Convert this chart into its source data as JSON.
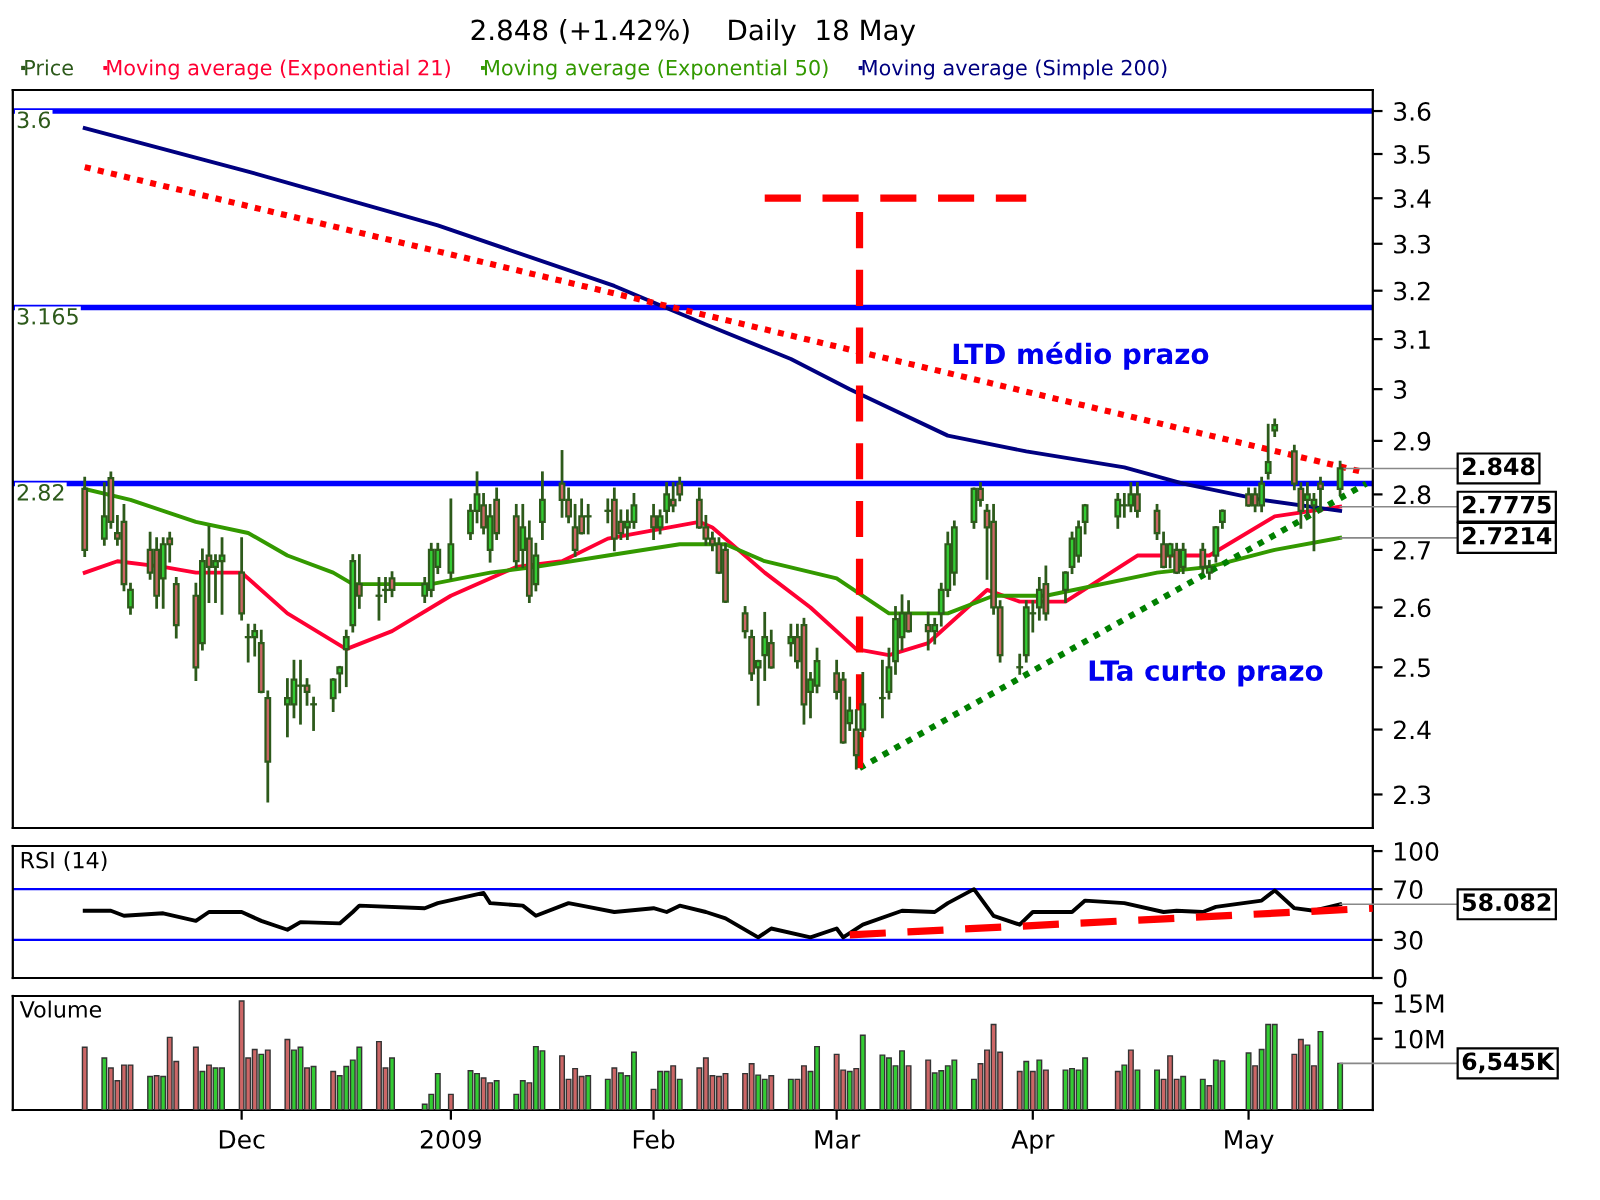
{
  "chart_data": [
    {
      "type": "candlestick",
      "title": "2.848 (+1.42%)    Daily  18 May",
      "log": true,
      "legend": "top left",
      "grid": false,
      "tick_labels": "y",
      "xlim": [
        "2008-10-27",
        "2009-05-23"
      ],
      "ylim": [
        2.25,
        3.65
      ],
      "yticks": [
        2.3,
        2.4,
        2.5,
        2.6,
        2.7,
        2.8,
        2.9,
        3,
        3.1,
        3.2,
        3.3,
        3.4,
        3.5,
        3.6
      ],
      "series": [
        {
          "type": "candlestick",
          "name": "Price",
          "color": "#2d5a1b",
          "x": [
            "2008-11-07",
            "2008-11-10",
            "2008-11-11",
            "2008-11-12",
            "2008-11-13",
            "2008-11-14",
            "2008-11-17",
            "2008-11-18",
            "2008-11-19",
            "2008-11-20",
            "2008-11-21",
            "2008-11-24",
            "2008-11-25",
            "2008-11-26",
            "2008-11-27",
            "2008-11-28",
            "2008-12-01",
            "2008-12-02",
            "2008-12-03",
            "2008-12-04",
            "2008-12-05",
            "2008-12-08",
            "2008-12-09",
            "2008-12-10",
            "2008-12-11",
            "2008-12-12",
            "2008-12-15",
            "2008-12-16",
            "2008-12-17",
            "2008-12-18",
            "2008-12-19",
            "2008-12-22",
            "2008-12-23",
            "2008-12-24",
            "2008-12-29",
            "2008-12-30",
            "2008-12-31",
            "2009-01-02",
            "2009-01-05",
            "2009-01-06",
            "2009-01-07",
            "2009-01-08",
            "2009-01-09",
            "2009-01-12",
            "2009-01-13",
            "2009-01-14",
            "2009-01-15",
            "2009-01-16",
            "2009-01-19",
            "2009-01-20",
            "2009-01-21",
            "2009-01-22",
            "2009-01-23",
            "2009-01-26",
            "2009-01-27",
            "2009-01-28",
            "2009-01-29",
            "2009-01-30",
            "2009-02-02",
            "2009-02-03",
            "2009-02-04",
            "2009-02-05",
            "2009-02-06",
            "2009-02-09",
            "2009-02-10",
            "2009-02-11",
            "2009-02-12",
            "2009-02-13",
            "2009-02-16",
            "2009-02-17",
            "2009-02-18",
            "2009-02-19",
            "2009-02-20",
            "2009-02-23",
            "2009-02-24",
            "2009-02-25",
            "2009-02-26",
            "2009-02-27",
            "2009-03-02",
            "2009-03-03",
            "2009-03-04",
            "2009-03-05",
            "2009-03-06",
            "2009-03-09",
            "2009-03-10",
            "2009-03-11",
            "2009-03-12",
            "2009-03-13",
            "2009-03-16",
            "2009-03-17",
            "2009-03-18",
            "2009-03-19",
            "2009-03-20",
            "2009-03-23",
            "2009-03-24",
            "2009-03-25",
            "2009-03-26",
            "2009-03-27",
            "2009-03-30",
            "2009-03-31",
            "2009-04-01",
            "2009-04-02",
            "2009-04-03",
            "2009-04-06",
            "2009-04-07",
            "2009-04-08",
            "2009-04-09",
            "2009-04-14",
            "2009-04-15",
            "2009-04-16",
            "2009-04-17",
            "2009-04-20",
            "2009-04-21",
            "2009-04-22",
            "2009-04-23",
            "2009-04-24",
            "2009-04-27",
            "2009-04-28",
            "2009-04-29",
            "2009-04-30",
            "2009-05-04",
            "2009-05-05",
            "2009-05-06",
            "2009-05-07",
            "2009-05-08",
            "2009-05-11",
            "2009-05-12",
            "2009-05-13",
            "2009-05-14",
            "2009-05-15",
            "2009-05-18"
          ],
          "ohlc": [
            [
              2.81,
              2.83,
              2.69,
              2.7
            ],
            [
              2.72,
              2.82,
              2.71,
              2.76
            ],
            [
              2.83,
              2.84,
              2.74,
              2.75
            ],
            [
              2.73,
              2.76,
              2.71,
              2.72
            ],
            [
              2.75,
              2.78,
              2.63,
              2.64
            ],
            [
              2.6,
              2.64,
              2.59,
              2.63
            ],
            [
              2.7,
              2.73,
              2.65,
              2.66
            ],
            [
              2.7,
              2.72,
              2.6,
              2.62
            ],
            [
              2.65,
              2.72,
              2.6,
              2.71
            ],
            [
              2.72,
              2.73,
              2.68,
              2.71
            ],
            [
              2.64,
              2.65,
              2.55,
              2.57
            ],
            [
              2.62,
              2.64,
              2.48,
              2.5
            ],
            [
              2.54,
              2.7,
              2.53,
              2.68
            ],
            [
              2.69,
              2.74,
              2.61,
              2.67
            ],
            [
              2.67,
              2.69,
              2.61,
              2.68
            ],
            [
              2.68,
              2.72,
              2.59,
              2.69
            ],
            [
              2.66,
              2.72,
              2.58,
              2.59
            ],
            [
              2.55,
              2.57,
              2.51,
              2.55
            ],
            [
              2.55,
              2.57,
              2.52,
              2.56
            ],
            [
              2.54,
              2.56,
              2.46,
              2.46
            ],
            [
              2.45,
              2.46,
              2.29,
              2.35
            ],
            [
              2.44,
              2.48,
              2.39,
              2.45
            ],
            [
              2.44,
              2.51,
              2.42,
              2.48
            ],
            [
              2.47,
              2.51,
              2.41,
              2.47
            ],
            [
              2.47,
              2.48,
              2.44,
              2.46
            ],
            [
              2.44,
              2.45,
              2.4,
              2.44
            ],
            [
              2.45,
              2.48,
              2.43,
              2.48
            ],
            [
              2.49,
              2.5,
              2.46,
              2.5
            ],
            [
              2.53,
              2.56,
              2.47,
              2.55
            ],
            [
              2.57,
              2.69,
              2.56,
              2.68
            ],
            [
              2.64,
              2.69,
              2.6,
              2.62
            ],
            [
              2.62,
              2.65,
              2.58,
              2.62
            ],
            [
              2.63,
              2.65,
              2.61,
              2.63
            ],
            [
              2.65,
              2.66,
              2.62,
              2.63
            ],
            [
              2.62,
              2.65,
              2.61,
              2.64
            ],
            [
              2.63,
              2.71,
              2.62,
              2.7
            ],
            [
              2.67,
              2.71,
              2.66,
              2.7
            ],
            [
              2.66,
              2.79,
              2.65,
              2.71
            ],
            [
              2.73,
              2.78,
              2.72,
              2.77
            ],
            [
              2.77,
              2.84,
              2.75,
              2.8
            ],
            [
              2.78,
              2.8,
              2.73,
              2.74
            ],
            [
              2.7,
              2.78,
              2.68,
              2.76
            ],
            [
              2.79,
              2.81,
              2.72,
              2.73
            ],
            [
              2.76,
              2.78,
              2.67,
              2.68
            ],
            [
              2.7,
              2.78,
              2.67,
              2.74
            ],
            [
              2.72,
              2.75,
              2.61,
              2.62
            ],
            [
              2.64,
              2.71,
              2.63,
              2.69
            ],
            [
              2.75,
              2.84,
              2.72,
              2.79
            ],
            [
              2.82,
              2.88,
              2.76,
              2.79
            ],
            [
              2.79,
              2.81,
              2.75,
              2.76
            ],
            [
              2.74,
              2.78,
              2.69,
              2.7
            ],
            [
              2.76,
              2.79,
              2.73,
              2.73
            ],
            [
              2.76,
              2.78,
              2.73,
              2.76
            ],
            [
              2.77,
              2.79,
              2.75,
              2.77
            ],
            [
              2.79,
              2.81,
              2.7,
              2.72
            ],
            [
              2.75,
              2.77,
              2.72,
              2.73
            ],
            [
              2.74,
              2.77,
              2.72,
              2.75
            ],
            [
              2.75,
              2.8,
              2.74,
              2.78
            ],
            [
              2.76,
              2.78,
              2.72,
              2.74
            ],
            [
              2.74,
              2.77,
              2.73,
              2.76
            ],
            [
              2.77,
              2.82,
              2.75,
              2.8
            ],
            [
              2.79,
              2.82,
              2.77,
              2.78
            ],
            [
              2.82,
              2.83,
              2.79,
              2.8
            ],
            [
              2.79,
              2.81,
              2.74,
              2.74
            ],
            [
              2.74,
              2.76,
              2.71,
              2.72
            ],
            [
              2.72,
              2.73,
              2.7,
              2.71
            ],
            [
              2.71,
              2.72,
              2.66,
              2.66
            ],
            [
              2.7,
              2.71,
              2.61,
              2.61
            ],
            [
              2.59,
              2.6,
              2.55,
              2.56
            ],
            [
              2.55,
              2.56,
              2.48,
              2.49
            ],
            [
              2.5,
              2.51,
              2.44,
              2.51
            ],
            [
              2.52,
              2.59,
              2.48,
              2.55
            ],
            [
              2.54,
              2.56,
              2.5,
              2.5
            ],
            [
              2.54,
              2.57,
              2.52,
              2.55
            ],
            [
              2.55,
              2.57,
              2.5,
              2.51
            ],
            [
              2.57,
              2.58,
              2.41,
              2.44
            ],
            [
              2.46,
              2.49,
              2.42,
              2.48
            ],
            [
              2.47,
              2.53,
              2.46,
              2.51
            ],
            [
              2.49,
              2.51,
              2.45,
              2.46
            ],
            [
              2.48,
              2.49,
              2.38,
              2.38
            ],
            [
              2.41,
              2.45,
              2.4,
              2.43
            ],
            [
              2.4,
              2.43,
              2.34,
              2.36
            ],
            [
              2.4,
              2.49,
              2.39,
              2.44
            ],
            [
              2.45,
              2.51,
              2.42,
              2.45
            ],
            [
              2.46,
              2.53,
              2.45,
              2.5
            ],
            [
              2.51,
              2.6,
              2.49,
              2.58
            ],
            [
              2.55,
              2.62,
              2.53,
              2.59
            ],
            [
              2.59,
              2.61,
              2.56,
              2.56
            ],
            [
              2.57,
              2.59,
              2.53,
              2.56
            ],
            [
              2.56,
              2.58,
              2.54,
              2.57
            ],
            [
              2.59,
              2.64,
              2.57,
              2.63
            ],
            [
              2.63,
              2.73,
              2.62,
              2.71
            ],
            [
              2.66,
              2.75,
              2.64,
              2.74
            ],
            [
              2.75,
              2.81,
              2.74,
              2.81
            ],
            [
              2.81,
              2.82,
              2.78,
              2.79
            ],
            [
              2.77,
              2.78,
              2.65,
              2.74
            ],
            [
              2.75,
              2.78,
              2.59,
              2.6
            ],
            [
              2.6,
              2.61,
              2.51,
              2.52
            ],
            [
              2.5,
              2.52,
              2.49,
              2.5
            ],
            [
              2.52,
              2.61,
              2.51,
              2.6
            ],
            [
              2.59,
              2.61,
              2.56,
              2.59
            ],
            [
              2.6,
              2.65,
              2.58,
              2.63
            ],
            [
              2.64,
              2.67,
              2.58,
              2.59
            ],
            [
              2.63,
              2.66,
              2.61,
              2.66
            ],
            [
              2.67,
              2.73,
              2.66,
              2.72
            ],
            [
              2.69,
              2.75,
              2.68,
              2.74
            ],
            [
              2.75,
              2.78,
              2.73,
              2.78
            ],
            [
              2.76,
              2.8,
              2.74,
              2.79
            ],
            [
              2.78,
              2.8,
              2.76,
              2.78
            ],
            [
              2.78,
              2.82,
              2.77,
              2.8
            ],
            [
              2.8,
              2.82,
              2.76,
              2.77
            ],
            [
              2.77,
              2.78,
              2.72,
              2.73
            ],
            [
              2.71,
              2.73,
              2.67,
              2.67
            ],
            [
              2.69,
              2.71,
              2.67,
              2.71
            ],
            [
              2.7,
              2.71,
              2.66,
              2.66
            ],
            [
              2.67,
              2.71,
              2.66,
              2.7
            ],
            [
              2.7,
              2.71,
              2.66,
              2.67
            ],
            [
              2.66,
              2.68,
              2.65,
              2.67
            ],
            [
              2.69,
              2.74,
              2.68,
              2.74
            ],
            [
              2.75,
              2.77,
              2.74,
              2.77
            ],
            [
              2.8,
              2.81,
              2.78,
              2.78
            ],
            [
              2.8,
              2.81,
              2.77,
              2.78
            ],
            [
              2.78,
              2.83,
              2.77,
              2.82
            ],
            [
              2.84,
              2.93,
              2.83,
              2.86
            ],
            [
              2.92,
              2.94,
              2.91,
              2.93
            ],
            [
              2.88,
              2.89,
              2.81,
              2.82
            ],
            [
              2.81,
              2.82,
              2.74,
              2.77
            ],
            [
              2.79,
              2.82,
              2.76,
              2.8
            ],
            [
              2.78,
              2.8,
              2.7,
              2.79
            ],
            [
              2.82,
              2.83,
              2.77,
              2.81
            ],
            [
              2.81,
              2.86,
              2.8,
              2.848
            ]
          ],
          "colors": [
            "#cc6666",
            "#33cc33",
            "#cc6666",
            "#cc6666",
            "#cc6666",
            "#33cc33",
            "#cc6666",
            "#cc6666",
            "#33cc33",
            "#cc6666",
            "#cc6666",
            "#cc6666",
            "#33cc33",
            "#cc6666",
            "#33cc33",
            "#33cc33",
            "#cc6666",
            "#33cc33",
            "#33cc33",
            "#cc6666",
            "#cc6666",
            "#33cc33",
            "#33cc33",
            "#33cc33",
            "#cc6666",
            "#33cc33",
            "#33cc33",
            "#33cc33",
            "#33cc33",
            "#33cc33",
            "#cc6666",
            "#33cc33",
            "#33cc33",
            "#cc6666",
            "#33cc33",
            "#33cc33",
            "#33cc33",
            "#33cc33",
            "#33cc33",
            "#33cc33",
            "#cc6666",
            "#33cc33",
            "#cc6666",
            "#cc6666",
            "#33cc33",
            "#cc6666",
            "#33cc33",
            "#33cc33",
            "#cc6666",
            "#cc6666",
            "#cc6666",
            "#cc6666",
            "#33cc33",
            "#33cc33",
            "#cc6666",
            "#cc6666",
            "#33cc33",
            "#33cc33",
            "#cc6666",
            "#33cc33",
            "#33cc33",
            "#cc6666",
            "#cc6666",
            "#cc6666",
            "#cc6666",
            "#cc6666",
            "#cc6666",
            "#cc6666",
            "#cc6666",
            "#cc6666",
            "#33cc33",
            "#33cc33",
            "#cc6666",
            "#33cc33",
            "#cc6666",
            "#cc6666",
            "#33cc33",
            "#33cc33",
            "#cc6666",
            "#cc6666",
            "#33cc33",
            "#cc6666",
            "#33cc33",
            "#33cc33",
            "#33cc33",
            "#33cc33",
            "#33cc33",
            "#cc6666",
            "#cc6666",
            "#33cc33",
            "#33cc33",
            "#33cc33",
            "#33cc33",
            "#33cc33",
            "#cc6666",
            "#cc6666",
            "#cc6666",
            "#cc6666",
            "#33cc33",
            "#33cc33",
            "#33cc33",
            "#33cc33",
            "#cc6666",
            "#33cc33",
            "#33cc33",
            "#33cc33",
            "#33cc33",
            "#33cc33",
            "#33cc33",
            "#33cc33",
            "#cc6666",
            "#cc6666",
            "#cc6666",
            "#33cc33",
            "#cc6666",
            "#33cc33",
            "#cc6666",
            "#33cc33",
            "#33cc33",
            "#33cc33",
            "#cc6666",
            "#cc6666",
            "#33cc33",
            "#33cc33",
            "#33cc33",
            "#cc6666",
            "#cc6666",
            "#33cc33",
            "#33cc33",
            "#cc6666",
            "#33cc33"
          ]
        },
        {
          "type": "line",
          "name": "Moving average (Exponential 21)",
          "color": "#ff0033",
          "x": [
            "2008-11-07",
            "2008-11-12",
            "2008-11-19",
            "2008-11-24",
            "2008-12-01",
            "2008-12-08",
            "2008-12-17",
            "2008-12-24",
            "2009-01-02",
            "2009-01-12",
            "2009-01-19",
            "2009-01-26",
            "2009-02-09",
            "2009-02-11",
            "2009-02-19",
            "2009-02-26",
            "2009-03-05",
            "2009-03-10",
            "2009-03-16",
            "2009-03-25",
            "2009-03-30",
            "2009-04-06",
            "2009-04-17",
            "2009-04-28",
            "2009-05-08",
            "2009-05-18"
          ],
          "values": [
            2.66,
            2.68,
            2.67,
            2.66,
            2.66,
            2.59,
            2.53,
            2.56,
            2.62,
            2.67,
            2.68,
            2.72,
            2.75,
            2.74,
            2.66,
            2.6,
            2.53,
            2.52,
            2.54,
            2.63,
            2.61,
            2.61,
            2.69,
            2.69,
            2.76,
            2.7775
          ]
        },
        {
          "type": "line",
          "name": "Moving average (Exponential 50)",
          "color": "#339900",
          "x": [
            "2008-11-07",
            "2008-11-14",
            "2008-11-24",
            "2008-12-02",
            "2008-12-08",
            "2008-12-15",
            "2008-12-18",
            "2008-12-30",
            "2009-01-08",
            "2009-01-15",
            "2009-01-26",
            "2009-02-06",
            "2009-02-13",
            "2009-02-19",
            "2009-03-02",
            "2009-03-10",
            "2009-03-19",
            "2009-03-26",
            "2009-04-03",
            "2009-04-20",
            "2009-04-28",
            "2009-05-08",
            "2009-05-18"
          ],
          "values": [
            2.81,
            2.79,
            2.75,
            2.73,
            2.69,
            2.66,
            2.64,
            2.64,
            2.66,
            2.67,
            2.69,
            2.71,
            2.71,
            2.68,
            2.65,
            2.59,
            2.59,
            2.62,
            2.62,
            2.66,
            2.67,
            2.7,
            2.7214
          ]
        },
        {
          "type": "line",
          "name": "Moving average (Simple 200)",
          "color": "#000080",
          "x": [
            "2008-11-07",
            "2008-12-02",
            "2008-12-31",
            "2009-01-27",
            "2009-02-10",
            "2009-02-23",
            "2009-03-04",
            "2009-03-19",
            "2009-03-31",
            "2009-04-15",
            "2009-04-24",
            "2009-05-06",
            "2009-05-18"
          ],
          "values": [
            3.56,
            3.46,
            3.34,
            3.21,
            3.13,
            3.06,
            3.0,
            2.91,
            2.88,
            2.85,
            2.82,
            2.79,
            2.77
          ]
        },
        {
          "type": "line",
          "color": "#ff0000",
          "line_style": "dotted",
          "x": [
            "2008-11-07",
            "2009-05-22"
          ],
          "values": [
            3.47,
            2.84
          ]
        },
        {
          "type": "line",
          "color": "#008000",
          "line_style": "dotted",
          "x": [
            "2009-03-05T12:00",
            "2009-05-22"
          ],
          "values": [
            2.34,
            2.82
          ]
        },
        {
          "type": "line",
          "color": "#ff0000",
          "line_style": "dashed",
          "x": [
            "2009-03-05T12:00",
            "2009-03-05T12:00"
          ],
          "values": [
            2.34,
            3.4
          ]
        },
        {
          "type": "line",
          "color": "#ff0000",
          "line_style": "dashed",
          "x": [
            "2009-02-19",
            "2009-03-31"
          ],
          "values": [
            3.4,
            3.4
          ]
        }
      ],
      "ref_lines": [
        {
          "axis": "y",
          "value": 3.6,
          "label": "3.6",
          "color": "#0000ff"
        },
        {
          "axis": "y",
          "value": 3.165,
          "label": "3.165",
          "color": "#0000ff"
        },
        {
          "axis": "y",
          "value": 2.82,
          "label": "2.82",
          "color": "#0000ff"
        }
      ],
      "annotations": [
        "LTD médio prazo",
        "LTa curto prazo",
        {
          "text": "2.848",
          "x": "2009-05-18",
          "y": 2.848
        },
        {
          "text": "2.7775",
          "x": "2009-05-18",
          "y": 2.7775
        },
        {
          "text": "2.7214",
          "x": "2009-05-18",
          "y": 2.7214
        }
      ]
    },
    {
      "type": "line",
      "title": "RSI (14)",
      "grid": false,
      "tick_labels": "y",
      "xlim": [
        "2008-10-27",
        "2009-05-23"
      ],
      "ylim": [
        0,
        104
      ],
      "yticks": [
        0,
        30,
        70,
        100
      ],
      "series": [
        {
          "type": "line",
          "color": "#000000",
          "x": [
            "2008-11-07",
            "2008-11-11",
            "2008-11-13",
            "2008-11-19",
            "2008-11-24",
            "2008-11-26",
            "2008-12-01",
            "2008-12-04",
            "2008-12-08",
            "2008-12-10",
            "2008-12-16",
            "2008-12-18",
            "2008-12-19",
            "2008-12-29",
            "2008-12-31",
            "2009-01-07",
            "2009-01-08",
            "2009-01-13",
            "2009-01-15",
            "2009-01-20",
            "2009-01-22",
            "2009-01-27",
            "2009-02-02",
            "2009-02-04",
            "2009-02-06",
            "2009-02-10",
            "2009-02-13",
            "2009-02-18",
            "2009-02-20",
            "2009-02-26",
            "2009-03-02",
            "2009-03-03",
            "2009-03-06",
            "2009-03-12",
            "2009-03-17",
            "2009-03-19",
            "2009-03-23",
            "2009-03-26",
            "2009-03-30",
            "2009-04-01",
            "2009-04-07",
            "2009-04-09",
            "2009-04-15",
            "2009-04-21",
            "2009-04-23",
            "2009-04-27",
            "2009-04-29",
            "2009-05-06",
            "2009-05-08",
            "2009-05-11",
            "2009-05-14",
            "2009-05-18"
          ],
          "values": [
            53,
            53,
            49,
            51,
            45,
            52,
            52,
            45,
            38,
            44,
            43,
            52,
            57,
            55,
            59,
            67,
            59,
            57,
            49,
            59,
            57,
            52,
            55,
            52,
            57,
            52,
            47,
            32,
            39,
            32,
            39,
            32,
            42,
            53,
            52,
            59,
            70,
            49,
            42,
            52,
            52,
            61,
            59,
            52,
            53,
            52,
            56,
            61,
            69,
            55,
            53,
            58.082
          ]
        },
        {
          "type": "line",
          "color": "#ff0000",
          "line_style": "dashed",
          "x": [
            "2009-03-04",
            "2009-05-23"
          ],
          "values": [
            34,
            55
          ]
        }
      ],
      "ref_lines": [
        {
          "axis": "y",
          "value": 30,
          "color": "#0000ff"
        },
        {
          "axis": "y",
          "value": 70,
          "color": "#0000ff"
        }
      ],
      "annotations": [
        {
          "text": "58.082",
          "x": "2009-05-18",
          "y": 58.082
        }
      ]
    },
    {
      "type": "bar",
      "title": "Volume",
      "grid": false,
      "xlim": [
        "2008-10-27",
        "2009-05-23"
      ],
      "ylim": [
        0,
        16
      ],
      "xticks": [
        {
          "value": "2008-12-01",
          "label": "Dec"
        },
        {
          "value": "2009-01-02",
          "label": "2009"
        },
        {
          "value": "2009-02-02",
          "label": "Feb"
        },
        {
          "value": "2009-03-02",
          "label": "Mar"
        },
        {
          "value": "2009-04-01",
          "label": "Apr"
        },
        {
          "value": "2009-05-04",
          "label": "May"
        }
      ],
      "yticks": [
        {
          "value": 10,
          "label": "10M"
        },
        {
          "value": 15,
          "label": "15M"
        }
      ],
      "x": [
        "2008-11-07",
        "2008-11-10",
        "2008-11-11",
        "2008-11-12",
        "2008-11-13",
        "2008-11-14",
        "2008-11-17",
        "2008-11-18",
        "2008-11-19",
        "2008-11-20",
        "2008-11-21",
        "2008-11-24",
        "2008-11-25",
        "2008-11-26",
        "2008-11-27",
        "2008-11-28",
        "2008-12-01",
        "2008-12-02",
        "2008-12-03",
        "2008-12-04",
        "2008-12-05",
        "2008-12-08",
        "2008-12-09",
        "2008-12-10",
        "2008-12-11",
        "2008-12-12",
        "2008-12-15",
        "2008-12-16",
        "2008-12-17",
        "2008-12-18",
        "2008-12-19",
        "2008-12-22",
        "2008-12-23",
        "2008-12-24",
        "2008-12-29",
        "2008-12-30",
        "2008-12-31",
        "2009-01-02",
        "2009-01-05",
        "2009-01-06",
        "2009-01-07",
        "2009-01-08",
        "2009-01-09",
        "2009-01-12",
        "2009-01-13",
        "2009-01-14",
        "2009-01-15",
        "2009-01-16",
        "2009-01-19",
        "2009-01-20",
        "2009-01-21",
        "2009-01-22",
        "2009-01-23",
        "2009-01-26",
        "2009-01-27",
        "2009-01-28",
        "2009-01-29",
        "2009-01-30",
        "2009-02-02",
        "2009-02-03",
        "2009-02-04",
        "2009-02-05",
        "2009-02-06",
        "2009-02-09",
        "2009-02-10",
        "2009-02-11",
        "2009-02-12",
        "2009-02-13",
        "2009-02-16",
        "2009-02-17",
        "2009-02-18",
        "2009-02-19",
        "2009-02-20",
        "2009-02-23",
        "2009-02-24",
        "2009-02-25",
        "2009-02-26",
        "2009-02-27",
        "2009-03-02",
        "2009-03-03",
        "2009-03-04",
        "2009-03-05",
        "2009-03-06",
        "2009-03-09",
        "2009-03-10",
        "2009-03-11",
        "2009-03-12",
        "2009-03-13",
        "2009-03-16",
        "2009-03-17",
        "2009-03-18",
        "2009-03-19",
        "2009-03-20",
        "2009-03-23",
        "2009-03-24",
        "2009-03-25",
        "2009-03-26",
        "2009-03-27",
        "2009-03-30",
        "2009-03-31",
        "2009-04-01",
        "2009-04-02",
        "2009-04-03",
        "2009-04-06",
        "2009-04-07",
        "2009-04-08",
        "2009-04-09",
        "2009-04-14",
        "2009-04-15",
        "2009-04-16",
        "2009-04-17",
        "2009-04-20",
        "2009-04-21",
        "2009-04-22",
        "2009-04-23",
        "2009-04-24",
        "2009-04-27",
        "2009-04-28",
        "2009-04-29",
        "2009-04-30",
        "2009-05-04",
        "2009-05-05",
        "2009-05-06",
        "2009-05-07",
        "2009-05-08",
        "2009-05-11",
        "2009-05-12",
        "2009-05-13",
        "2009-05-14",
        "2009-05-15",
        "2009-05-18"
      ],
      "values": [
        8.8,
        7.3,
        5.9,
        4.1,
        6.3,
        6.3,
        4.7,
        4.8,
        4.7,
        10.2,
        6.8,
        8.8,
        5.4,
        6.3,
        5.9,
        5.9,
        15.3,
        7.3,
        8.5,
        7.8,
        8.4,
        9.9,
        8.4,
        8.8,
        5.9,
        6.1,
        5.4,
        4.8,
        6.1,
        7.0,
        8.8,
        9.6,
        5.9,
        7.3,
        0.8,
        2.2,
        5.1,
        2.2,
        5.5,
        5.1,
        4.5,
        3.8,
        4.1,
        2.2,
        4.1,
        3.8,
        8.9,
        8.3,
        7.6,
        4.3,
        5.8,
        4.7,
        4.8,
        4.3,
        5.9,
        5.2,
        4.8,
        8.1,
        2.9,
        5.4,
        5.4,
        6.2,
        4.3,
        5.9,
        7.3,
        4.8,
        4.7,
        5.1,
        5.1,
        6.5,
        4.9,
        4.3,
        4.8,
        4.3,
        4.3,
        6.2,
        5.4,
        8.9,
        7.8,
        5.6,
        5.4,
        5.8,
        10.5,
        7.7,
        7.3,
        6.2,
        8.3,
        6.2,
        7.0,
        5.2,
        5.5,
        6.2,
        7.0,
        4.3,
        6.5,
        8.4,
        12.0,
        8.1,
        5.4,
        6.8,
        5.4,
        7.0,
        5.6,
        5.6,
        5.8,
        5.6,
        7.3,
        5.4,
        6.3,
        8.4,
        5.6,
        5.6,
        4.3,
        7.6,
        4.3,
        4.7,
        4.3,
        3.4,
        7.0,
        6.9,
        8.0,
        6.2,
        8.5,
        12.0,
        12.0,
        7.8,
        9.9,
        9.1,
        6.2,
        11.0,
        6.545
      ],
      "colors": [
        "#cc6666",
        "#33cc33",
        "#cc6666",
        "#cc6666",
        "#cc6666",
        "#cc6666",
        "#33cc33",
        "#cc6666",
        "#33cc33",
        "#cc6666",
        "#cc6666",
        "#cc6666",
        "#33cc33",
        "#cc6666",
        "#33cc33",
        "#33cc33",
        "#cc6666",
        "#cc6666",
        "#cc6666",
        "#33cc33",
        "#cc6666",
        "#cc6666",
        "#33cc33",
        "#33cc33",
        "#cc6666",
        "#33cc33",
        "#cc6666",
        "#33cc33",
        "#33cc33",
        "#33cc33",
        "#33cc33",
        "#cc6666",
        "#cc6666",
        "#33cc33",
        "#33cc33",
        "#33cc33",
        "#33cc33",
        "#cc6666",
        "#33cc33",
        "#33cc33",
        "#cc6666",
        "#cc6666",
        "#33cc33",
        "#33cc33",
        "#33cc33",
        "#cc6666",
        "#33cc33",
        "#33cc33",
        "#cc6666",
        "#cc6666",
        "#cc6666",
        "#cc6666",
        "#33cc33",
        "#33cc33",
        "#cc6666",
        "#33cc33",
        "#33cc33",
        "#33cc33",
        "#cc6666",
        "#33cc33",
        "#33cc33",
        "#cc6666",
        "#33cc33",
        "#cc6666",
        "#cc6666",
        "#cc6666",
        "#cc6666",
        "#cc6666",
        "#cc6666",
        "#cc6666",
        "#33cc33",
        "#33cc33",
        "#cc6666",
        "#33cc33",
        "#cc6666",
        "#cc6666",
        "#33cc33",
        "#33cc33",
        "#cc6666",
        "#cc6666",
        "#33cc33",
        "#cc6666",
        "#33cc33",
        "#33cc33",
        "#33cc33",
        "#33cc33",
        "#33cc33",
        "#cc6666",
        "#cc6666",
        "#33cc33",
        "#33cc33",
        "#33cc33",
        "#33cc33",
        "#33cc33",
        "#cc6666",
        "#cc6666",
        "#cc6666",
        "#cc6666",
        "#cc6666",
        "#33cc33",
        "#cc6666",
        "#33cc33",
        "#cc6666",
        "#33cc33",
        "#33cc33",
        "#33cc33",
        "#33cc33",
        "#cc6666",
        "#33cc33",
        "#cc6666",
        "#33cc33",
        "#33cc33",
        "#cc6666",
        "#cc6666",
        "#cc6666",
        "#33cc33",
        "#33cc33",
        "#cc6666",
        "#33cc33",
        "#33cc33",
        "#33cc33",
        "#cc6666",
        "#33cc33",
        "#33cc33",
        "#33cc33",
        "#cc6666",
        "#cc6666",
        "#33cc33",
        "#cc6666",
        "#33cc33",
        "#33cc33"
      ],
      "annotations": [
        {
          "text": "6,545K",
          "x": "2009-05-18",
          "y": 6.545
        }
      ]
    }
  ]
}
